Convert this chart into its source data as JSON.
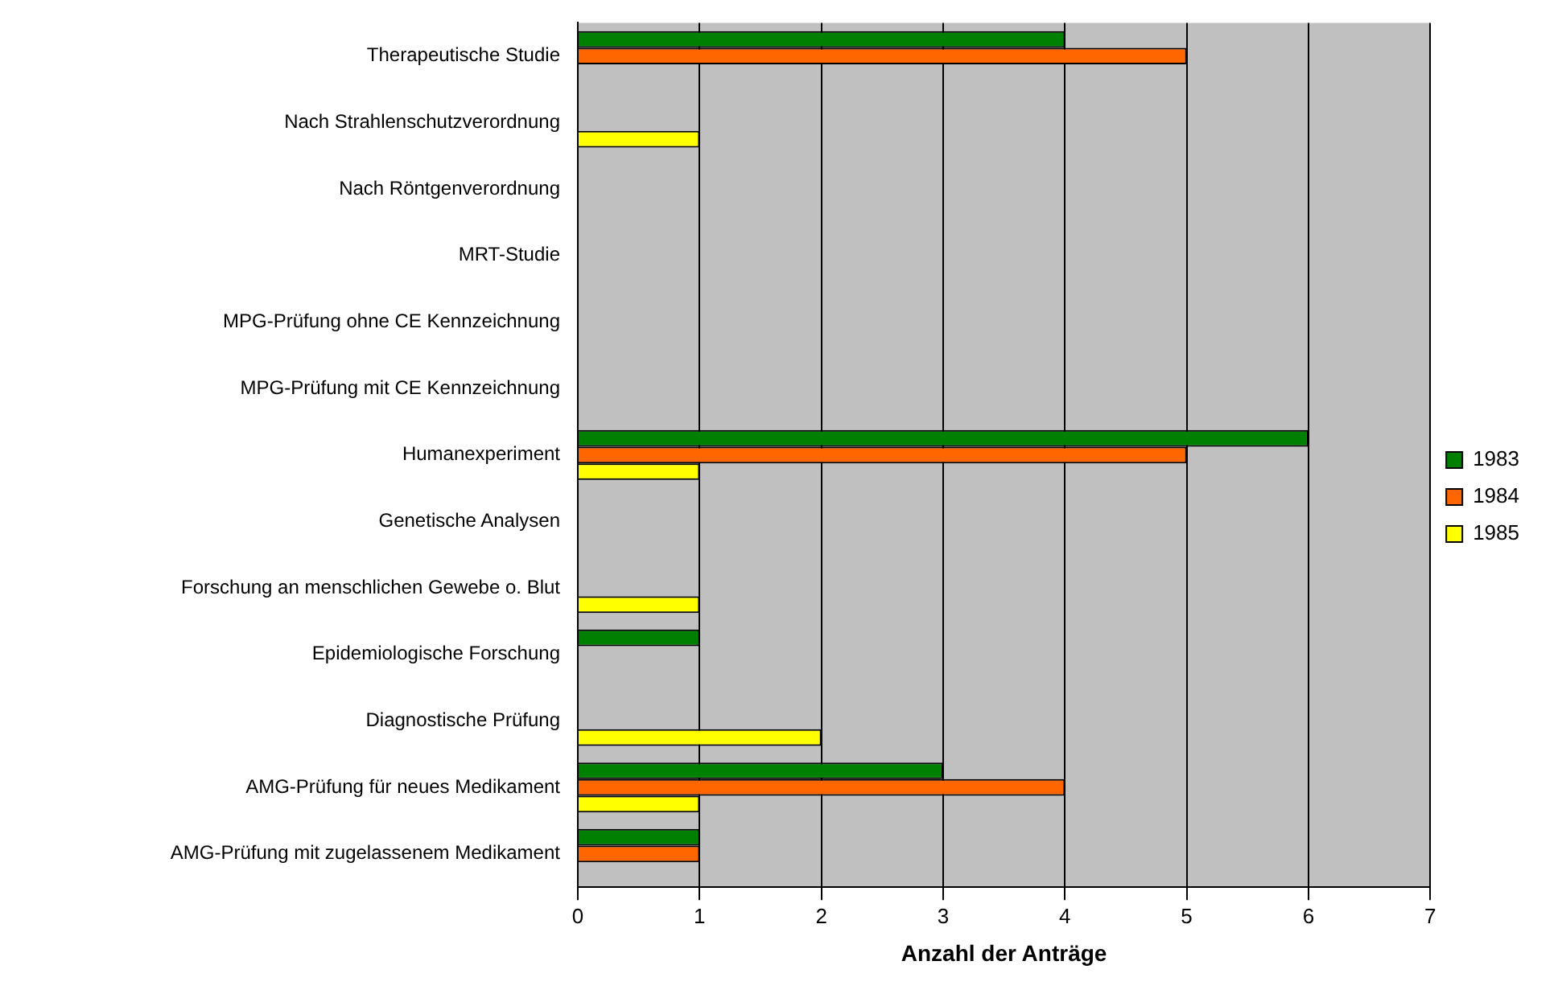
{
  "chart_data": {
    "type": "bar",
    "orientation": "horizontal",
    "xlabel": "Anzahl der Anträge",
    "categories": [
      "Therapeutische Studie",
      "Nach Strahlenschutzverordnung",
      "Nach Röntgenverordnung",
      "MRT-Studie",
      "MPG-Prüfung ohne CE Kennzeichnung",
      "MPG-Prüfung mit CE Kennzeichnung",
      "Humanexperiment",
      "Genetische Analysen",
      "Forschung an menschlichen Gewebe o. Blut",
      "Epidemiologische Forschung",
      "Diagnostische Prüfung",
      "AMG-Prüfung für neues Medikament",
      "AMG-Prüfung mit zugelassenem Medikament"
    ],
    "series": [
      {
        "name": "1983",
        "color": "#008000",
        "values": [
          4,
          null,
          null,
          null,
          null,
          null,
          6,
          null,
          null,
          1,
          null,
          3,
          1
        ]
      },
      {
        "name": "1984",
        "color": "#ff6600",
        "values": [
          5,
          null,
          null,
          null,
          null,
          null,
          5,
          null,
          null,
          null,
          null,
          4,
          1
        ]
      },
      {
        "name": "1985",
        "color": "#ffff00",
        "values": [
          null,
          1,
          null,
          null,
          null,
          null,
          1,
          null,
          1,
          null,
          2,
          1,
          null
        ]
      }
    ],
    "xlim": [
      0,
      7
    ],
    "xticks": [
      0,
      1,
      2,
      3,
      4,
      5,
      6,
      7
    ],
    "grid": "x",
    "legend": "right"
  }
}
